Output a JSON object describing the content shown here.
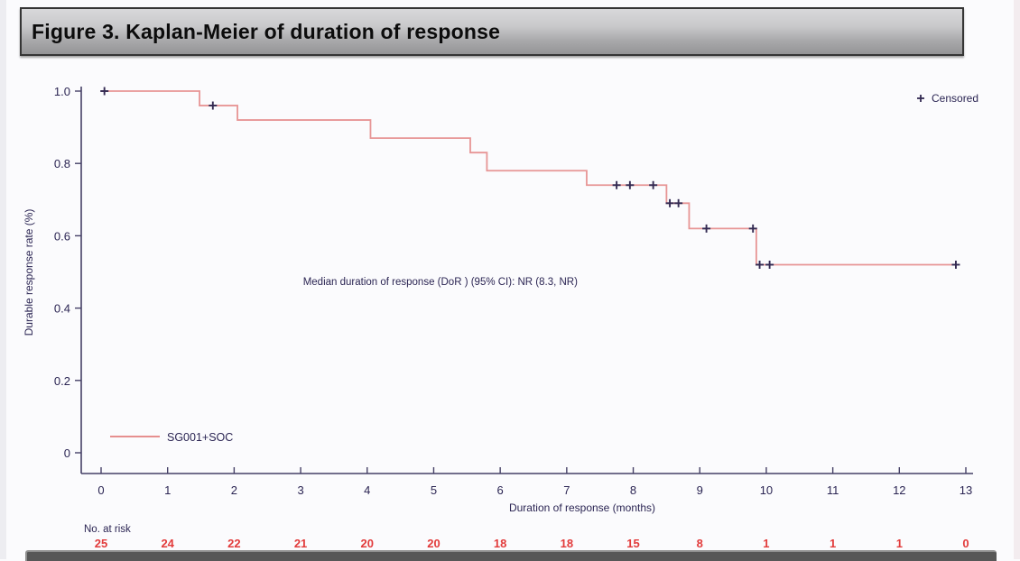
{
  "figure": {
    "title": "Figure 3. Kaplan-Meier of duration of response"
  },
  "colors": {
    "curve": "#e68f8f",
    "censor_marker": "#332a52",
    "axis_text": "#2b2553",
    "axis_line": "#454066",
    "risk_numbers": "#e23b3b",
    "titlebar_text": "#0c0c0c"
  },
  "chart_data": {
    "type": "line",
    "subtype": "kaplan_meier_step",
    "title": "",
    "xlabel": "Duration of response (months)",
    "ylabel": "Durable response rate (%)",
    "xlim": [
      0,
      13
    ],
    "ylim": [
      0,
      1.0
    ],
    "x_ticks": [
      0,
      1,
      2,
      3,
      4,
      5,
      6,
      7,
      8,
      9,
      10,
      11,
      12,
      13
    ],
    "y_ticks": [
      0,
      0.2,
      0.4,
      0.6,
      0.8,
      1.0
    ],
    "y_tick_labels": [
      "0",
      "0.2",
      "0.4",
      "0.6",
      "0.8",
      "1.0"
    ],
    "grid": false,
    "legend_position": "top-right",
    "censored_legend": {
      "marker": "+",
      "label": "Censored"
    },
    "annotation": {
      "text": "Median duration of response (DoR ) (95% CI): NR (8.3, NR)",
      "x_month": 5.1,
      "y_rate": 0.464
    },
    "series": [
      {
        "name": "SG001+SOC",
        "color": "#e68f8f",
        "steps": [
          [
            0,
            1.0
          ],
          [
            1.48,
            0.96
          ],
          [
            2.05,
            0.92
          ],
          [
            4.05,
            0.87
          ],
          [
            5.55,
            0.83
          ],
          [
            5.8,
            0.78
          ],
          [
            7.3,
            0.74
          ],
          [
            8.5,
            0.69
          ],
          [
            8.84,
            0.62
          ],
          [
            9.85,
            0.52
          ]
        ],
        "curve_end_month": 12.85,
        "censor_marks": [
          [
            0.05,
            1.0
          ],
          [
            1.68,
            0.96
          ],
          [
            7.75,
            0.74
          ],
          [
            7.95,
            0.74
          ],
          [
            8.3,
            0.74
          ],
          [
            8.55,
            0.69
          ],
          [
            8.68,
            0.69
          ],
          [
            9.1,
            0.62
          ],
          [
            9.8,
            0.62
          ],
          [
            9.9,
            0.52
          ],
          [
            10.05,
            0.52
          ],
          [
            12.85,
            0.52
          ]
        ]
      }
    ],
    "risk_table": {
      "label": "No. at risk",
      "months": [
        0,
        1,
        2,
        3,
        4,
        5,
        6,
        7,
        8,
        9,
        10,
        11,
        12,
        13
      ],
      "values": [
        "25",
        "24",
        "22",
        "21",
        "20",
        "20",
        "18",
        "18",
        "15",
        "8",
        "1",
        "1",
        "1",
        "0"
      ]
    }
  }
}
